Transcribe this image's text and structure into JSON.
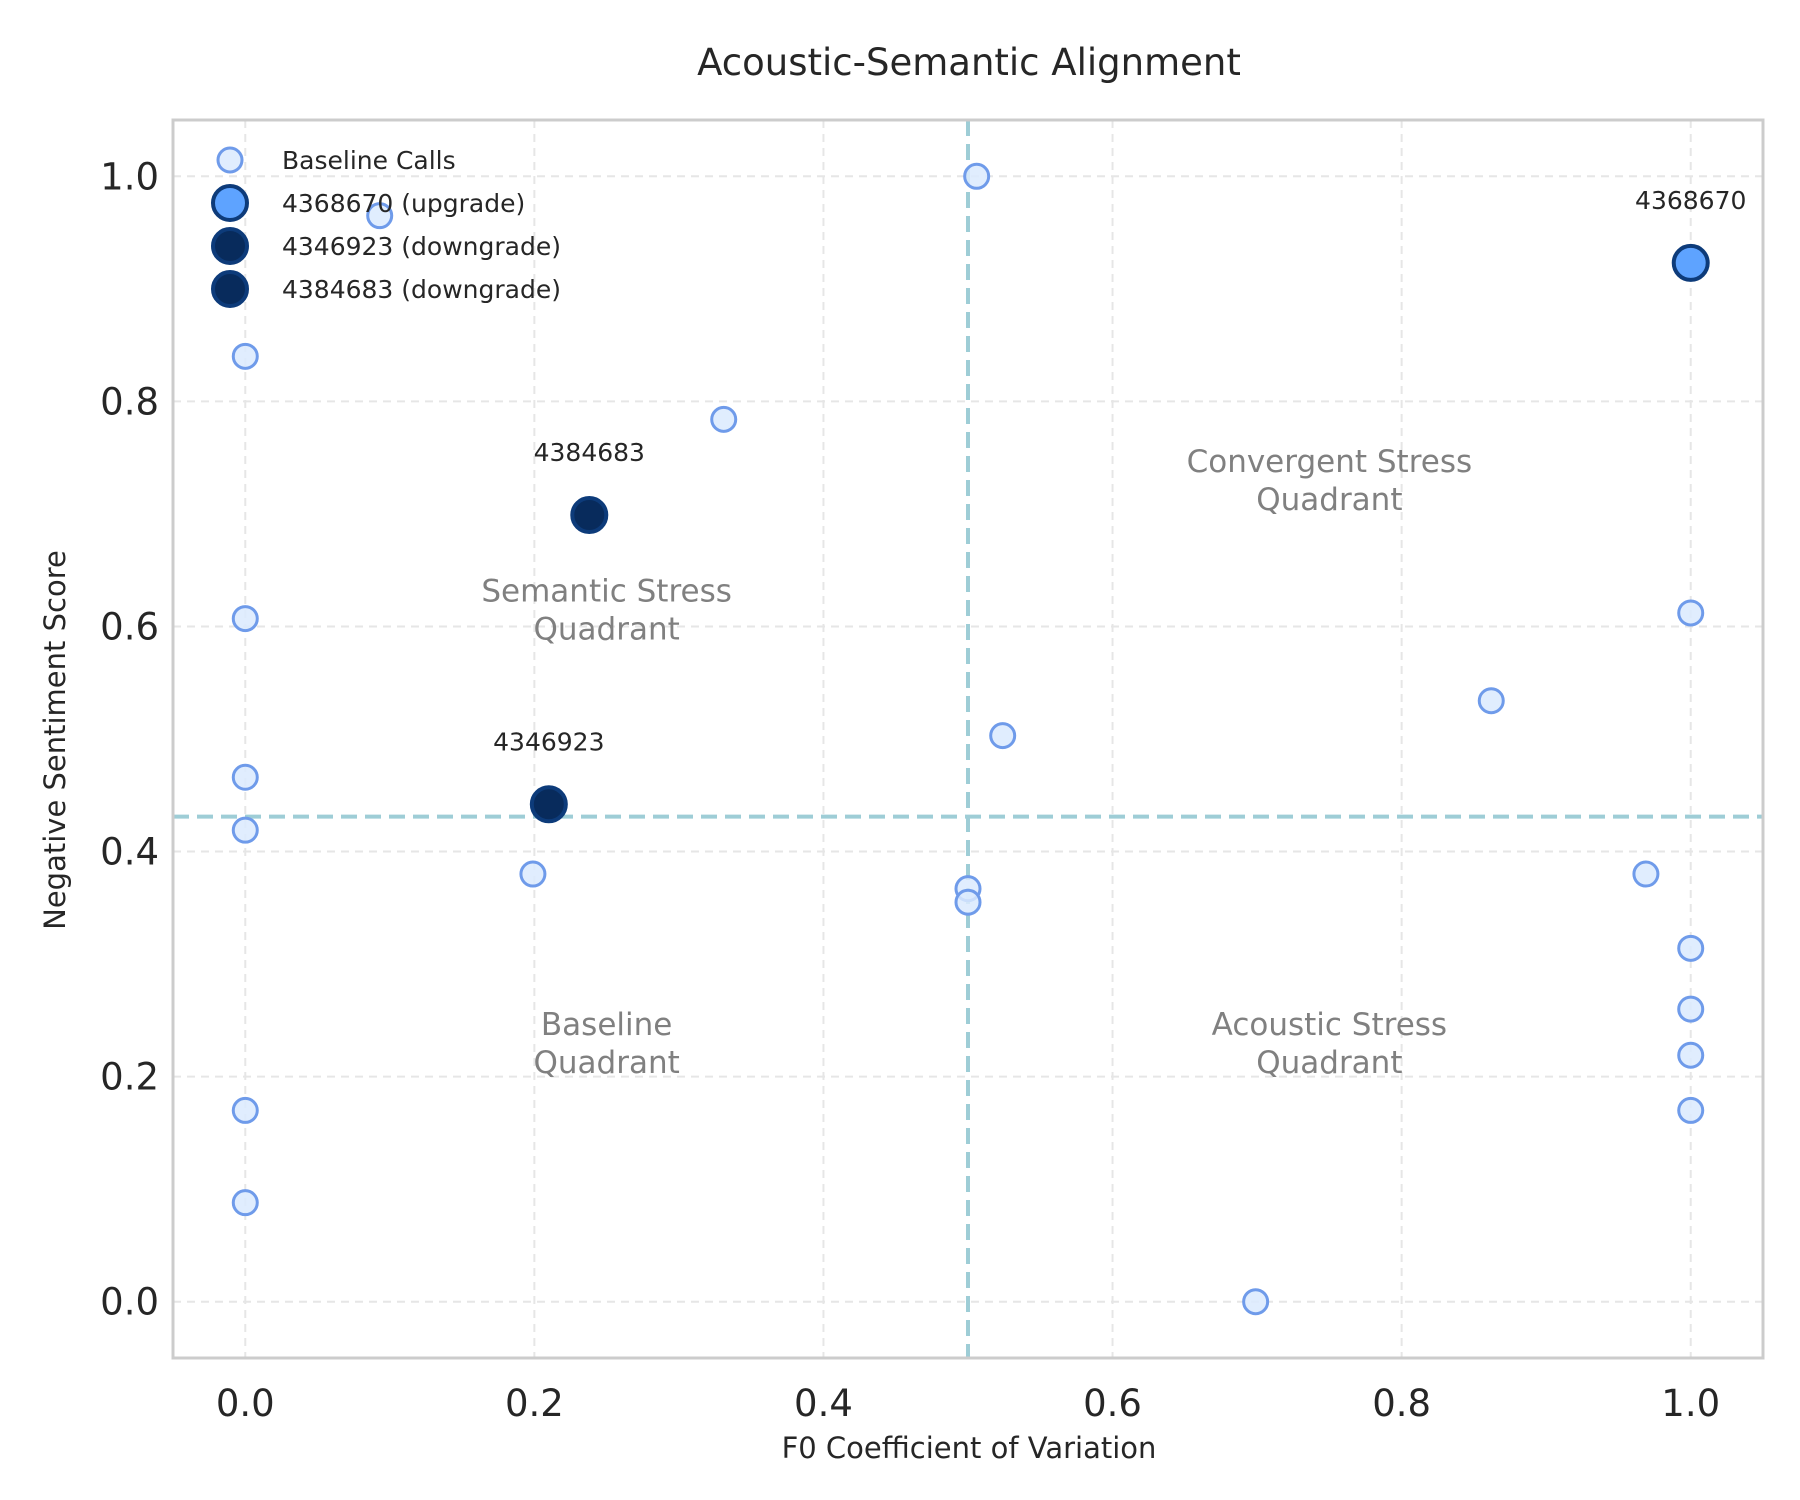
{
  "chart_data": {
    "type": "scatter",
    "title": "Acoustic-Semantic Alignment",
    "xlabel": "F0 Coefficient of Variation",
    "ylabel": "Negative Sentiment Score",
    "xlim": [
      -0.05,
      1.05
    ],
    "ylim": [
      -0.05,
      1.05
    ],
    "x_ticks": [
      "0.0",
      "0.2",
      "0.4",
      "0.6",
      "0.8",
      "1.0"
    ],
    "y_ticks": [
      "0.0",
      "0.2",
      "0.4",
      "0.6",
      "0.8",
      "1.0"
    ],
    "grid": true,
    "legend_position": "top-left",
    "threshold_lines": {
      "x": 0.5,
      "y": 0.431
    },
    "quadrant_labels": [
      {
        "text": [
          "Semantic Stress",
          "Quadrant"
        ],
        "x": 0.25,
        "y": 0.615
      },
      {
        "text": [
          "Convergent Stress",
          "Quadrant"
        ],
        "x": 0.75,
        "y": 0.73
      },
      {
        "text": [
          "Baseline",
          "Quadrant"
        ],
        "x": 0.25,
        "y": 0.23
      },
      {
        "text": [
          "Acoustic Stress",
          "Quadrant"
        ],
        "x": 0.75,
        "y": 0.23
      }
    ],
    "series": [
      {
        "name": "Baseline Calls",
        "color": "#dbeafe",
        "edge": "#6f9bea",
        "points": [
          [
            0.0,
            0.84
          ],
          [
            0.093,
            0.965
          ],
          [
            0.0,
            0.607
          ],
          [
            0.0,
            0.466
          ],
          [
            0.0,
            0.419
          ],
          [
            0.0,
            0.17
          ],
          [
            0.0,
            0.088
          ],
          [
            0.199,
            0.38
          ],
          [
            0.331,
            0.784
          ],
          [
            0.506,
            1.0
          ],
          [
            0.524,
            0.503
          ],
          [
            0.5,
            0.367
          ],
          [
            0.5,
            0.355
          ],
          [
            0.699,
            0.0
          ],
          [
            0.862,
            0.534
          ],
          [
            0.969,
            0.38
          ],
          [
            1.0,
            0.612
          ],
          [
            1.0,
            0.314
          ],
          [
            1.0,
            0.26
          ],
          [
            1.0,
            0.219
          ],
          [
            1.0,
            0.17
          ]
        ]
      },
      {
        "name": "4368670 (upgrade)",
        "label": "4368670",
        "color": "#5ea3ff",
        "edge": "#0d3b7a",
        "points": [
          [
            1.0,
            0.923
          ]
        ]
      },
      {
        "name": "4346923 (downgrade)",
        "label": "4346923",
        "color": "#082b5c",
        "edge": "#0d3b7a",
        "points": [
          [
            0.21,
            0.442
          ]
        ]
      },
      {
        "name": "4384683 (downgrade)",
        "label": "4384683",
        "color": "#082b5c",
        "edge": "#0d3b7a",
        "points": [
          [
            0.238,
            0.699
          ]
        ]
      }
    ],
    "colors": {
      "threshold": "#9ecdd6",
      "grid": "#e6e6e6",
      "frame": "#cccccc"
    }
  }
}
